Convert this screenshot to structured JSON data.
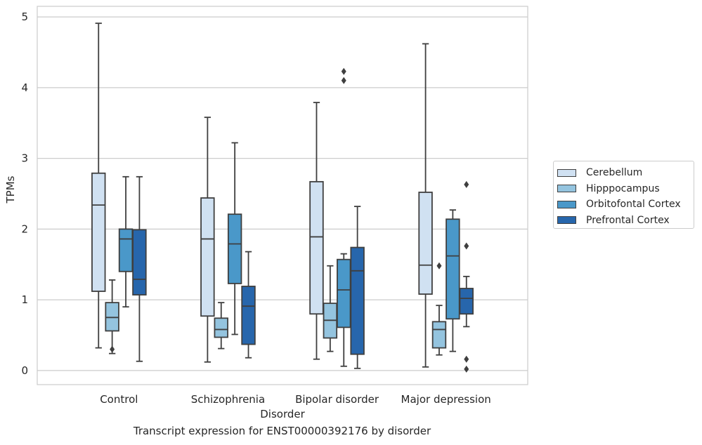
{
  "chart_data": {
    "type": "box",
    "title": "",
    "caption": "Transcript expression for ENST00000392176 by disorder",
    "xlabel": "Disorder",
    "ylabel": "TPMs",
    "ylim": [
      -0.2,
      5.15
    ],
    "yticks": [
      "0",
      "1",
      "2",
      "3",
      "4",
      "5"
    ],
    "grid": true,
    "legend_position": "right",
    "categories": [
      "Control",
      "Schizophrenia",
      "Bipolar disorder",
      "Major depression"
    ],
    "series": [
      {
        "name": "Cerebellum",
        "color": "#d0e1f2",
        "boxes": [
          {
            "whisker_low": 0.32,
            "q1": 1.12,
            "median": 2.34,
            "q3": 2.79,
            "whisker_high": 4.91,
            "outliers": []
          },
          {
            "whisker_low": 0.12,
            "q1": 0.77,
            "median": 1.86,
            "q3": 2.44,
            "whisker_high": 3.58,
            "outliers": []
          },
          {
            "whisker_low": 0.16,
            "q1": 0.8,
            "median": 1.89,
            "q3": 2.67,
            "whisker_high": 3.79,
            "outliers": []
          },
          {
            "whisker_low": 0.05,
            "q1": 1.08,
            "median": 1.49,
            "q3": 2.52,
            "whisker_high": 4.62,
            "outliers": []
          }
        ]
      },
      {
        "name": "Hipppocampus",
        "color": "#94c4df",
        "boxes": [
          {
            "whisker_low": 0.24,
            "q1": 0.56,
            "median": 0.75,
            "q3": 0.96,
            "whisker_high": 1.28,
            "outliers": [
              0.3
            ]
          },
          {
            "whisker_low": 0.31,
            "q1": 0.47,
            "median": 0.58,
            "q3": 0.74,
            "whisker_high": 0.96,
            "outliers": []
          },
          {
            "whisker_low": 0.27,
            "q1": 0.46,
            "median": 0.71,
            "q3": 0.95,
            "whisker_high": 1.48,
            "outliers": []
          },
          {
            "whisker_low": 0.22,
            "q1": 0.32,
            "median": 0.58,
            "q3": 0.69,
            "whisker_high": 0.92,
            "outliers": [
              1.48
            ]
          }
        ]
      },
      {
        "name": "Orbitofontal Cortex",
        "color": "#4a98c9",
        "boxes": [
          {
            "whisker_low": 0.9,
            "q1": 1.4,
            "median": 1.86,
            "q3": 2.0,
            "whisker_high": 2.74,
            "outliers": []
          },
          {
            "whisker_low": 0.51,
            "q1": 1.23,
            "median": 1.79,
            "q3": 2.21,
            "whisker_high": 3.22,
            "outliers": []
          },
          {
            "whisker_low": 0.06,
            "q1": 0.61,
            "median": 1.14,
            "q3": 1.57,
            "whisker_high": 1.65,
            "outliers": [
              4.1,
              4.23
            ]
          },
          {
            "whisker_low": 0.27,
            "q1": 0.73,
            "median": 1.62,
            "q3": 2.14,
            "whisker_high": 2.27,
            "outliers": []
          }
        ]
      },
      {
        "name": "Prefrontal Cortex",
        "color": "#2766ac",
        "boxes": [
          {
            "whisker_low": 0.13,
            "q1": 1.07,
            "median": 1.29,
            "q3": 1.99,
            "whisker_high": 2.74,
            "outliers": []
          },
          {
            "whisker_low": 0.18,
            "q1": 0.37,
            "median": 0.91,
            "q3": 1.19,
            "whisker_high": 1.68,
            "outliers": []
          },
          {
            "whisker_low": 0.03,
            "q1": 0.23,
            "median": 1.41,
            "q3": 1.74,
            "whisker_high": 2.32,
            "outliers": []
          },
          {
            "whisker_low": 0.62,
            "q1": 0.8,
            "median": 1.02,
            "q3": 1.16,
            "whisker_high": 1.33,
            "outliers": [
              2.63,
              1.76,
              0.16,
              0.02
            ]
          }
        ]
      }
    ]
  }
}
